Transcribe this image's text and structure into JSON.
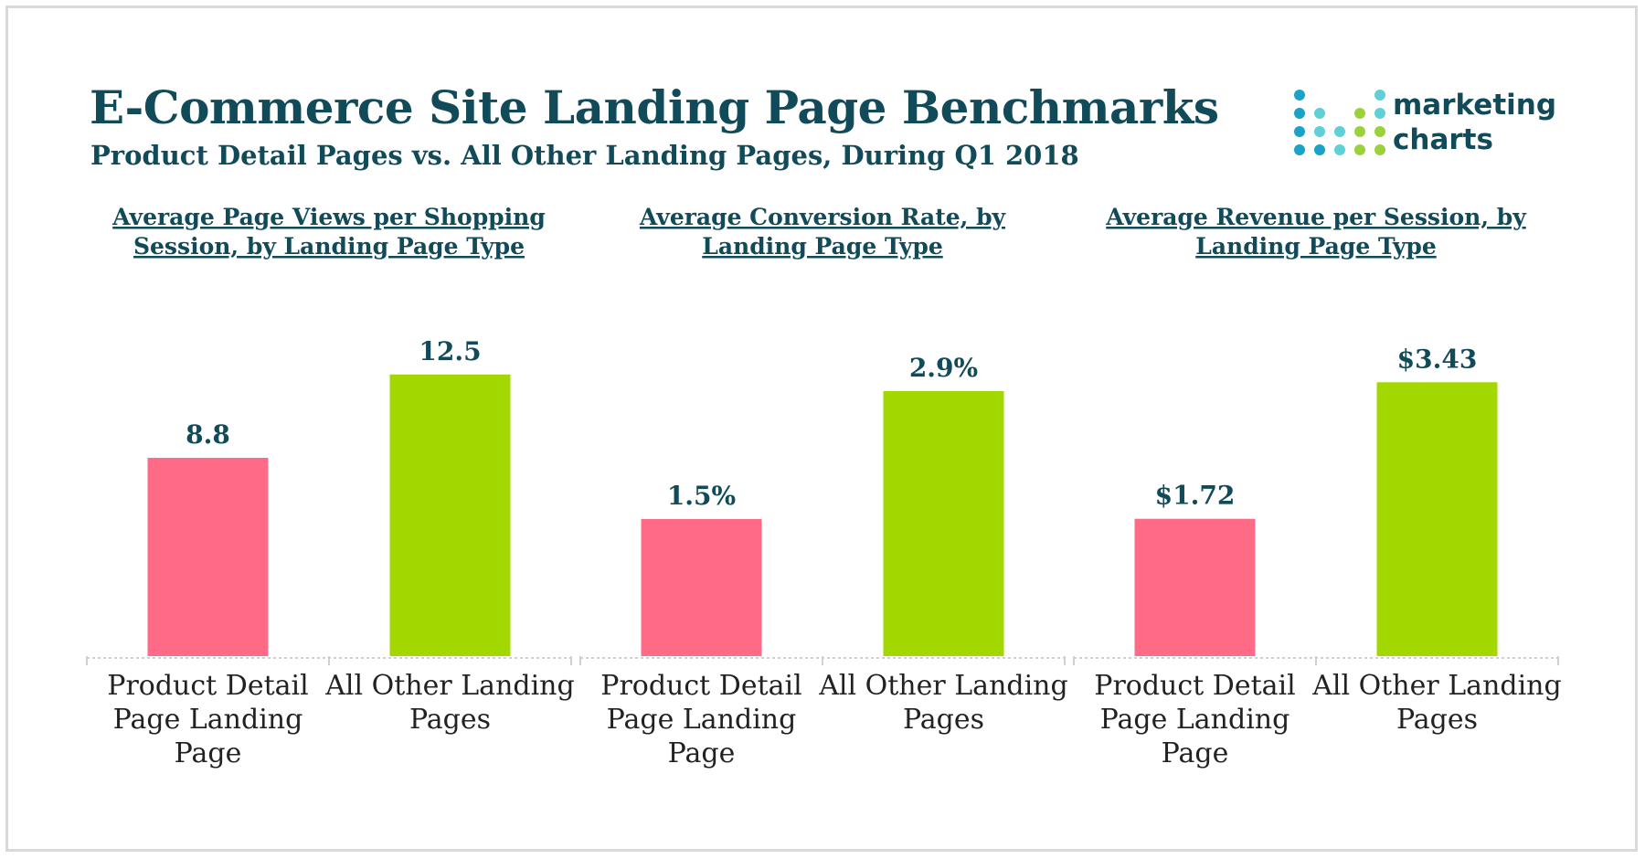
{
  "header": {
    "title": "E-Commerce Site Landing Page Benchmarks",
    "subtitle": "Product Detail Pages vs. All Other Landing Pages, During Q1 2018"
  },
  "logo": {
    "line1": "marketing",
    "line2": "charts",
    "dot_colors": [
      "#1aa3c8",
      "#5fd0d6",
      "#9bd23c",
      "#1aa3c8"
    ]
  },
  "colors": {
    "product_detail": "#ff6b86",
    "all_other": "#a2d800",
    "text": "#114a59",
    "axis": "#d0d0d0"
  },
  "chart_data": [
    {
      "type": "bar",
      "title": [
        "Average Page Views per Shopping",
        "Session, by Landing Page Type"
      ],
      "categories": [
        [
          "Product Detail",
          "Page Landing",
          "Page"
        ],
        [
          "All Other Landing",
          "Pages"
        ]
      ],
      "values": [
        8.8,
        12.5
      ],
      "value_labels": [
        "8.8",
        "12.5"
      ],
      "ylim": [
        0,
        14.6
      ]
    },
    {
      "type": "bar",
      "title": [
        "Average Conversion Rate, by",
        "Landing Page Type"
      ],
      "categories": [
        [
          "Product Detail",
          "Page Landing",
          "Page"
        ],
        [
          "All Other Landing",
          "Pages"
        ]
      ],
      "values": [
        1.5,
        2.9
      ],
      "value_labels": [
        "1.5%",
        "2.9%"
      ],
      "ylim": [
        0,
        3.6
      ]
    },
    {
      "type": "bar",
      "title": [
        "Average Revenue per Session, by",
        "Landing Page Type"
      ],
      "categories": [
        [
          "Product Detail",
          "Page Landing",
          "Page"
        ],
        [
          "All Other Landing",
          "Pages"
        ]
      ],
      "values": [
        1.72,
        3.43
      ],
      "value_labels": [
        "$1.72",
        "$3.43"
      ],
      "ylim": [
        0,
        4.12
      ]
    }
  ]
}
